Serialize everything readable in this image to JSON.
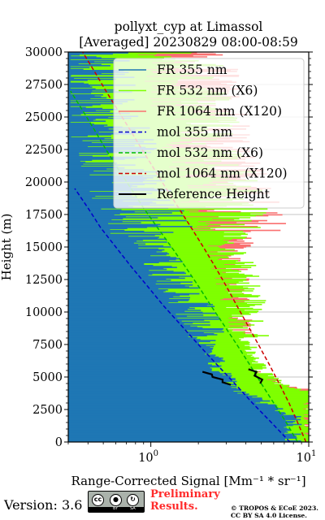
{
  "chart_data": {
    "type": "line",
    "title_line1": "pollyxt_cyp at Limassol",
    "title_line2": "[Averaged] 20230829 08:00-08:59",
    "ylabel": "Height (m)",
    "xlabel": "Range-Corrected Signal [Mm⁻¹ * sr⁻¹]",
    "xscale": "log",
    "xlim": [
      0.3,
      10
    ],
    "ylim": [
      0,
      30000
    ],
    "grid": true,
    "legend_location": "upper-right",
    "yticks": [
      {
        "value": 0,
        "label": "0"
      },
      {
        "value": 2500,
        "label": "2500"
      },
      {
        "value": 5000,
        "label": "5000"
      },
      {
        "value": 7500,
        "label": "7500"
      },
      {
        "value": 10000,
        "label": "10000"
      },
      {
        "value": 12500,
        "label": "12500"
      },
      {
        "value": 15000,
        "label": "15000"
      },
      {
        "value": 17500,
        "label": "17500"
      },
      {
        "value": 20000,
        "label": "20000"
      },
      {
        "value": 22500,
        "label": "22500"
      },
      {
        "value": 25000,
        "label": "25000"
      },
      {
        "value": 27500,
        "label": "27500"
      },
      {
        "value": 30000,
        "label": "30000"
      }
    ],
    "xticks": [
      {
        "value": 1,
        "base": "10",
        "exp": "0"
      },
      {
        "value": 10,
        "base": "10",
        "exp": "1"
      }
    ],
    "series": [
      {
        "name": "FR 355 nm",
        "color": "#1f77b4",
        "kind": "signal",
        "x": [
          7.5,
          5.0,
          3.5,
          2.6,
          2.2,
          1.7,
          1.2,
          0.9,
          0.7,
          0.55,
          0.45,
          0.35,
          0.3
        ],
        "y": [
          2000,
          3000,
          4000,
          5500,
          7500,
          10000,
          12500,
          15000,
          17500,
          20000,
          23000,
          27000,
          30000
        ]
      },
      {
        "name": "FR 532 nm (X6)",
        "color": "#7fff00",
        "kind": "signal",
        "x": [
          10,
          6.5,
          4.8,
          4.0,
          3.6,
          3.3,
          3.0,
          2.7,
          2.5,
          2.3,
          2.0,
          1.6,
          1.2
        ],
        "y": [
          3800,
          4200,
          5500,
          7000,
          9000,
          11000,
          13000,
          15000,
          16500,
          18000,
          20000,
          24000,
          29500
        ]
      },
      {
        "name": "FR 1064 nm (X120)",
        "color": "#fa7070",
        "kind": "signal",
        "x": [
          10,
          6.0,
          4.0,
          3.2,
          2.8,
          2.6,
          2.6,
          2.8,
          3.0,
          2.6,
          2.2,
          1.8,
          1.5
        ],
        "y": [
          4000,
          4500,
          5500,
          7000,
          9000,
          11000,
          13000,
          15000,
          17000,
          19000,
          21000,
          25000,
          29500
        ]
      },
      {
        "name": "mol 355 nm",
        "color": "#0000cc",
        "kind": "molecular",
        "x": [
          7.6,
          5.8,
          4.4,
          3.4,
          2.6,
          2.0,
          1.55,
          1.2,
          0.95,
          0.75,
          0.6,
          0.48,
          0.4,
          0.33
        ],
        "y": [
          0,
          1500,
          3000,
          4500,
          6000,
          7500,
          9000,
          10500,
          12000,
          13500,
          15000,
          16500,
          18000,
          19500
        ]
      },
      {
        "name": "mol 532 nm (X6)",
        "color": "#00bb00",
        "kind": "molecular",
        "x": [
          8.5,
          7.2,
          6.0,
          5.0,
          4.2,
          3.5,
          2.9,
          2.4,
          2.0,
          1.65,
          1.35,
          1.1,
          0.9,
          0.75,
          0.62,
          0.52,
          0.44,
          0.37,
          0.31
        ],
        "y": [
          0,
          1500,
          3000,
          4500,
          6000,
          7500,
          9000,
          10500,
          12000,
          13500,
          15000,
          16500,
          18000,
          19500,
          21000,
          22500,
          24000,
          25500,
          27000
        ]
      },
      {
        "name": "mol 1064 nm (X120)",
        "color": "#cc0000",
        "kind": "molecular",
        "x": [
          9.6,
          8.5,
          7.5,
          6.5,
          5.6,
          4.8,
          4.1,
          3.5,
          3.0,
          2.55,
          2.15,
          1.8,
          1.5,
          1.25,
          1.05,
          0.88,
          0.74,
          0.62,
          0.52,
          0.44,
          0.37,
          0.32
        ],
        "y": [
          0,
          1500,
          3000,
          4500,
          6000,
          7500,
          9000,
          10500,
          12000,
          13500,
          15000,
          16500,
          18000,
          19500,
          21000,
          22500,
          24000,
          25500,
          27000,
          28500,
          30000,
          31500
        ]
      },
      {
        "name": "Reference Height",
        "color": "#000000",
        "kind": "reference",
        "segments": [
          {
            "x": [
              2.2,
              2.35,
              2.55,
              2.75,
              2.95,
              3.1
            ],
            "y": [
              5400,
              5200,
              5000,
              4800,
              4600,
              4400
            ]
          },
          {
            "x": [
              4.3,
              4.5,
              4.7,
              4.9,
              5.1
            ],
            "y": [
              5600,
              5400,
              5100,
              4800,
              4500
            ]
          }
        ]
      }
    ]
  },
  "footer": {
    "version": "Version: 3.6",
    "badge_top": "cc",
    "badge_by": "BY",
    "badge_sa": "SA",
    "prelim_line1": "Preliminary",
    "prelim_line2": "Results.",
    "copyright_line1": "© TROPOS & ECoE 2023.",
    "copyright_line2": "CC BY SA 4.0 License."
  }
}
